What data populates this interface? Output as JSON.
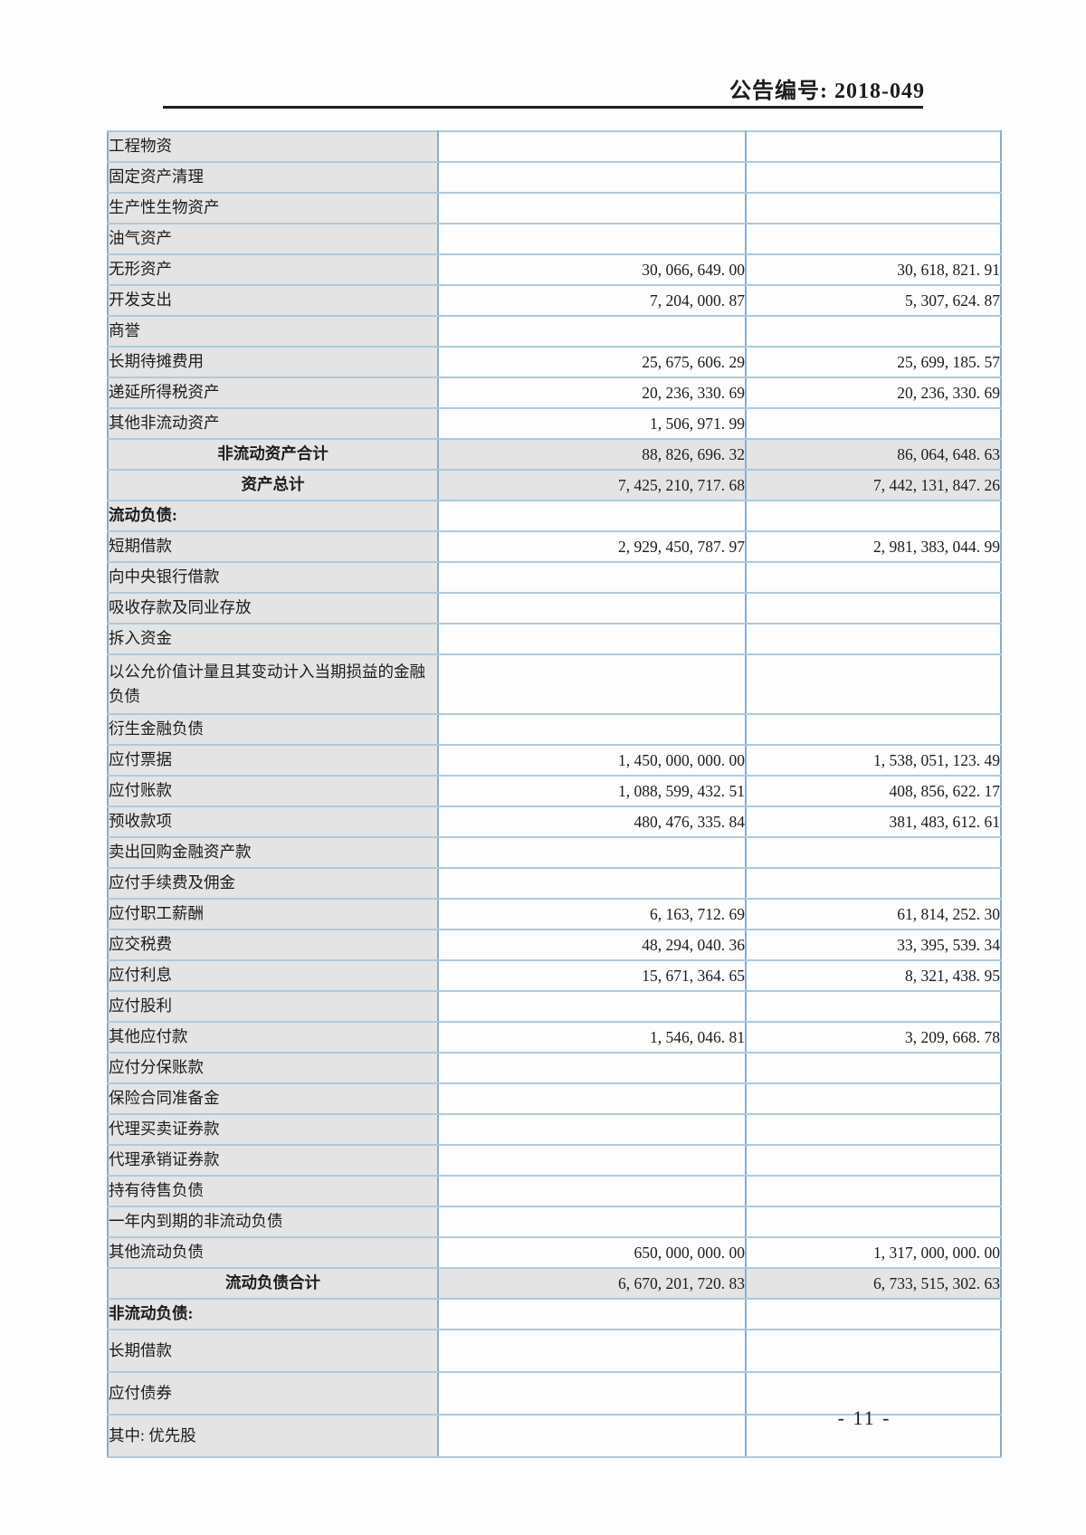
{
  "page": {
    "header": {
      "announcement_label": "公告编号: 2018-049"
    },
    "footer": {
      "page_number": "- 11 -"
    }
  },
  "colors": {
    "table_border_horizontal": "#aec9dd",
    "table_border_vertical": "#86aecf",
    "label_cell_bg": "#e4e4e4",
    "data_cell_bg": "#fdfdfd",
    "header_rule": "#1f1f1f",
    "text": "#1c1c1c"
  },
  "table": {
    "rows": [
      {
        "type": "item",
        "label": "工程物资",
        "current": "",
        "previous": ""
      },
      {
        "type": "item",
        "label": "固定资产清理",
        "current": "",
        "previous": ""
      },
      {
        "type": "item",
        "label": "生产性生物资产",
        "current": "",
        "previous": ""
      },
      {
        "type": "item",
        "label": "油气资产",
        "current": "",
        "previous": ""
      },
      {
        "type": "item",
        "label": "无形资产",
        "current": "30, 066, 649. 00",
        "previous": "30, 618, 821. 91"
      },
      {
        "type": "item",
        "label": "开发支出",
        "current": "7, 204, 000. 87",
        "previous": "5, 307, 624. 87"
      },
      {
        "type": "item",
        "label": "商誉",
        "current": "",
        "previous": ""
      },
      {
        "type": "item",
        "label": "长期待摊费用",
        "current": "25, 675, 606. 29",
        "previous": "25, 699, 185. 57"
      },
      {
        "type": "item",
        "label": "递延所得税资产",
        "current": "20, 236, 330. 69",
        "previous": "20, 236, 330. 69"
      },
      {
        "type": "item",
        "label": "其他非流动资产",
        "current": "1, 506, 971. 99",
        "previous": ""
      },
      {
        "type": "total",
        "label": "非流动资产合计",
        "current": "88, 826, 696. 32",
        "previous": "86, 064, 648. 63"
      },
      {
        "type": "total",
        "label": "资产总计",
        "current": "7, 425, 210, 717. 68",
        "previous": "7, 442, 131, 847. 26"
      },
      {
        "type": "section",
        "label": "流动负债:",
        "current": "",
        "previous": ""
      },
      {
        "type": "item",
        "label": "短期借款",
        "current": "2, 929, 450, 787. 97",
        "previous": "2, 981, 383, 044. 99"
      },
      {
        "type": "item",
        "label": "向中央银行借款",
        "current": "",
        "previous": ""
      },
      {
        "type": "item",
        "label": "吸收存款及同业存放",
        "current": "",
        "previous": ""
      },
      {
        "type": "item",
        "label": "拆入资金",
        "current": "",
        "previous": ""
      },
      {
        "type": "item_double",
        "label": "以公允价值计量且其变动计入当期损益的金融负债",
        "current": "",
        "previous": ""
      },
      {
        "type": "item",
        "label": "衍生金融负债",
        "current": "",
        "previous": ""
      },
      {
        "type": "item",
        "label": "应付票据",
        "current": "1, 450, 000, 000. 00",
        "previous": "1, 538, 051, 123. 49"
      },
      {
        "type": "item",
        "label": "应付账款",
        "current": "1, 088, 599, 432. 51",
        "previous": "408, 856, 622. 17"
      },
      {
        "type": "item",
        "label": "预收款项",
        "current": "480, 476, 335. 84",
        "previous": "381, 483, 612. 61"
      },
      {
        "type": "item",
        "label": "卖出回购金融资产款",
        "current": "",
        "previous": ""
      },
      {
        "type": "item",
        "label": "应付手续费及佣金",
        "current": "",
        "previous": ""
      },
      {
        "type": "item",
        "label": "应付职工薪酬",
        "current": "6, 163, 712. 69",
        "previous": "61, 814, 252. 30"
      },
      {
        "type": "item",
        "label": "应交税费",
        "current": "48, 294, 040. 36",
        "previous": "33, 395, 539. 34"
      },
      {
        "type": "item",
        "label": "应付利息",
        "current": "15, 671, 364. 65",
        "previous": "8, 321, 438. 95"
      },
      {
        "type": "item",
        "label": "应付股利",
        "current": "",
        "previous": ""
      },
      {
        "type": "item",
        "label": "其他应付款",
        "current": "1, 546, 046. 81",
        "previous": "3, 209, 668. 78"
      },
      {
        "type": "item",
        "label": "应付分保账款",
        "current": "",
        "previous": ""
      },
      {
        "type": "item",
        "label": "保险合同准备金",
        "current": "",
        "previous": ""
      },
      {
        "type": "item",
        "label": "代理买卖证券款",
        "current": "",
        "previous": ""
      },
      {
        "type": "item",
        "label": "代理承销证券款",
        "current": "",
        "previous": ""
      },
      {
        "type": "item",
        "label": "持有待售负债",
        "current": "",
        "previous": ""
      },
      {
        "type": "item",
        "label": "一年内到期的非流动负债",
        "current": "",
        "previous": ""
      },
      {
        "type": "item",
        "label": "其他流动负债",
        "current": "650, 000, 000. 00",
        "previous": "1, 317, 000, 000. 00"
      },
      {
        "type": "total",
        "label": "流动负债合计",
        "current": "6, 670, 201, 720. 83",
        "previous": "6, 733, 515, 302. 63"
      },
      {
        "type": "section",
        "label": "非流动负债:",
        "current": "",
        "previous": ""
      },
      {
        "type": "item_tall",
        "label": "长期借款",
        "current": "",
        "previous": ""
      },
      {
        "type": "item_tall",
        "label": "应付债券",
        "current": "",
        "previous": ""
      },
      {
        "type": "item_tall",
        "label": "其中: 优先股",
        "current": "",
        "previous": ""
      }
    ]
  }
}
